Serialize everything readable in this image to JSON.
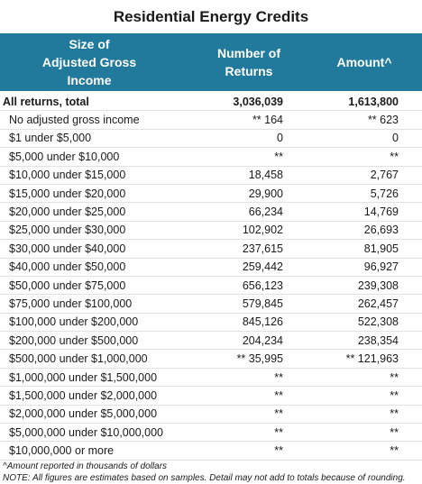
{
  "title": "Residential Energy Credits",
  "header": {
    "col1": "Size of\nAdjusted Gross\nIncome",
    "col2": "Number of\nReturns",
    "col3": "Amount^"
  },
  "rows": [
    {
      "label": "All returns, total",
      "returns": "3,036,039",
      "amount": "1,613,800"
    },
    {
      "label": "No adjusted gross income",
      "returns": "** 164",
      "amount": "** 623"
    },
    {
      "label": "$1 under $5,000",
      "returns": "0",
      "amount": "0"
    },
    {
      "label": "$5,000 under $10,000",
      "returns": "**",
      "amount": "**"
    },
    {
      "label": "$10,000 under $15,000",
      "returns": "18,458",
      "amount": "2,767"
    },
    {
      "label": "$15,000 under $20,000",
      "returns": "29,900",
      "amount": "5,726"
    },
    {
      "label": "$20,000 under $25,000",
      "returns": "66,234",
      "amount": "14,769"
    },
    {
      "label": "$25,000 under $30,000",
      "returns": "102,902",
      "amount": "26,693"
    },
    {
      "label": "$30,000 under $40,000",
      "returns": "237,615",
      "amount": "81,905"
    },
    {
      "label": "$40,000 under $50,000",
      "returns": "259,442",
      "amount": "96,927"
    },
    {
      "label": "$50,000 under $75,000",
      "returns": "656,123",
      "amount": "239,308"
    },
    {
      "label": "$75,000 under $100,000",
      "returns": "579,845",
      "amount": "262,457"
    },
    {
      "label": "$100,000 under $200,000",
      "returns": "845,126",
      "amount": "522,308"
    },
    {
      "label": "$200,000 under $500,000",
      "returns": "204,234",
      "amount": "238,354"
    },
    {
      "label": "$500,000 under $1,000,000",
      "returns": "** 35,995",
      "amount": "** 121,963"
    },
    {
      "label": "$1,000,000 under $1,500,000",
      "returns": "**",
      "amount": "**"
    },
    {
      "label": "$1,500,000 under $2,000,000",
      "returns": "**",
      "amount": "**"
    },
    {
      "label": "$2,000,000 under $5,000,000",
      "returns": "**",
      "amount": "**"
    },
    {
      "label": "$5,000,000 under $10,000,000",
      "returns": "**",
      "amount": "**"
    },
    {
      "label": "$10,000,000 or more",
      "returns": "**",
      "amount": "**"
    }
  ],
  "footnotes": {
    "amount_note": "^Amount reported in thousands of dollars",
    "note": "NOTE: All figures are estimates based on samples. Detail may not add to totals because of rounding."
  }
}
